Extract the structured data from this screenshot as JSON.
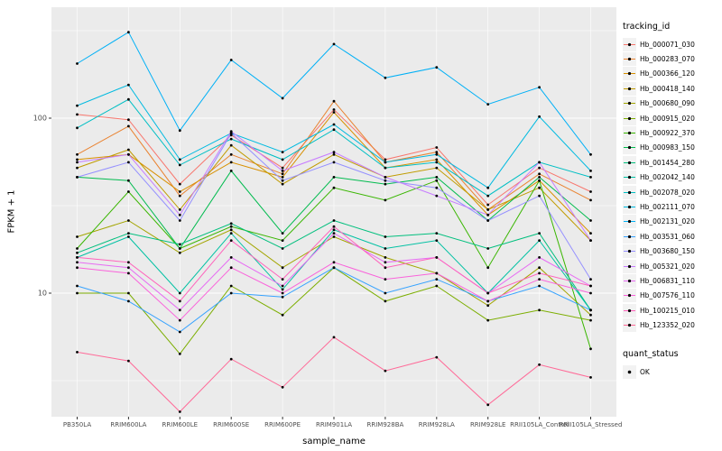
{
  "chart_data": {
    "type": "line",
    "title": "",
    "xlabel": "sample_name",
    "ylabel": "FPKM + 1",
    "y_scale": "log10",
    "y_ticks": [
      10,
      100
    ],
    "y_minor_ticks": [
      3.162,
      31.62,
      316.2
    ],
    "ylim": [
      2,
      430
    ],
    "grid": true,
    "panel_bg": "#EBEBEB",
    "grid_color": "#FFFFFF",
    "point_color": "#000000",
    "legend_position": "right",
    "categories": [
      "PB350LA",
      "RRIM600LA",
      "RRIM600LE",
      "RRIM600SE",
      "RRIM600PE",
      "RRIM901LA",
      "RRIM928BA",
      "RRIM928LA",
      "RRIM928LE",
      "RRII105LA_Control",
      "RRII105LA_Stressed"
    ],
    "series": [
      {
        "name": "Hb_000071_030",
        "color": "#F8766D",
        "values": [
          105,
          98,
          42,
          80,
          52,
          112,
          58,
          68,
          32,
          52,
          38
        ]
      },
      {
        "name": "Hb_000283_070",
        "color": "#EA8331",
        "values": [
          62,
          90,
          36,
          62,
          48,
          125,
          56,
          64,
          30,
          48,
          34
        ]
      },
      {
        "name": "Hb_000366_120",
        "color": "#D89000",
        "values": [
          58,
          62,
          38,
          56,
          46,
          108,
          52,
          58,
          28,
          44,
          22
        ]
      },
      {
        "name": "Hb_000418_140",
        "color": "#C09B00",
        "values": [
          52,
          66,
          30,
          70,
          42,
          62,
          46,
          52,
          30,
          40,
          20
        ]
      },
      {
        "name": "Hb_000680_090",
        "color": "#A3A500",
        "values": [
          21,
          26,
          17,
          23,
          14,
          21,
          16,
          13,
          8.5,
          14,
          7.5
        ]
      },
      {
        "name": "Hb_000915_020",
        "color": "#7CAE00",
        "values": [
          10,
          10,
          4.5,
          11,
          7.5,
          14,
          9,
          11,
          7,
          8,
          7
        ]
      },
      {
        "name": "Hb_000922_370",
        "color": "#39B600",
        "values": [
          18,
          38,
          18,
          24,
          20,
          40,
          34,
          44,
          14,
          44,
          4.8
        ]
      },
      {
        "name": "Hb_000983_150",
        "color": "#00BB4E",
        "values": [
          46,
          44,
          18,
          50,
          22,
          46,
          42,
          46,
          26,
          46,
          26
        ]
      },
      {
        "name": "Hb_001454_280",
        "color": "#00BF7D",
        "values": [
          17,
          22,
          19,
          25,
          18,
          26,
          21,
          22,
          18,
          22,
          8
        ]
      },
      {
        "name": "Hb_002042_140",
        "color": "#00C1A3",
        "values": [
          16,
          21,
          10,
          22,
          10.5,
          23,
          18,
          20,
          10,
          20,
          8
        ]
      },
      {
        "name": "Hb_002078_020",
        "color": "#00BFC4",
        "values": [
          88,
          128,
          54,
          76,
          58,
          86,
          52,
          56,
          36,
          56,
          46
        ]
      },
      {
        "name": "Hb_002111_070",
        "color": "#00BAE0",
        "values": [
          118,
          155,
          58,
          82,
          64,
          92,
          56,
          62,
          40,
          102,
          50
        ]
      },
      {
        "name": "Hb_002131_020",
        "color": "#00B0F6",
        "values": [
          205,
          310,
          85,
          215,
          130,
          265,
          170,
          195,
          120,
          150,
          62
        ]
      },
      {
        "name": "Hb_003531_060",
        "color": "#35A2FF",
        "values": [
          11,
          9,
          6,
          10,
          9.5,
          14,
          10,
          12,
          9,
          11,
          8
        ]
      },
      {
        "name": "Hb_003680_150",
        "color": "#9590FF",
        "values": [
          46,
          56,
          26,
          82,
          44,
          56,
          44,
          40,
          26,
          36,
          12
        ]
      },
      {
        "name": "Hb_005321_020",
        "color": "#C77CFF",
        "values": [
          56,
          62,
          28,
          84,
          50,
          64,
          46,
          36,
          28,
          56,
          20
        ]
      },
      {
        "name": "Hb_006831_110",
        "color": "#E76BF3",
        "values": [
          15,
          14,
          8,
          16,
          11,
          22,
          15,
          16,
          10,
          16,
          11
        ]
      },
      {
        "name": "Hb_007576_110",
        "color": "#FA62DB",
        "values": [
          14,
          13,
          7,
          14,
          10,
          15,
          12,
          13,
          9,
          12,
          10
        ]
      },
      {
        "name": "Hb_100215_010",
        "color": "#FF62BC",
        "values": [
          16,
          15,
          9,
          20,
          12,
          24,
          14,
          16,
          10,
          13,
          11
        ]
      },
      {
        "name": "Hb_123352_020",
        "color": "#FF6A98",
        "values": [
          4.6,
          4.1,
          2.1,
          4.2,
          2.9,
          5.6,
          3.6,
          4.3,
          2.3,
          3.9,
          3.3
        ]
      }
    ],
    "legend": {
      "color_title": "tracking_id",
      "shape_title": "quant_status",
      "shape_entries": [
        {
          "label": "OK",
          "shape": "point",
          "color": "#000000"
        }
      ]
    }
  }
}
